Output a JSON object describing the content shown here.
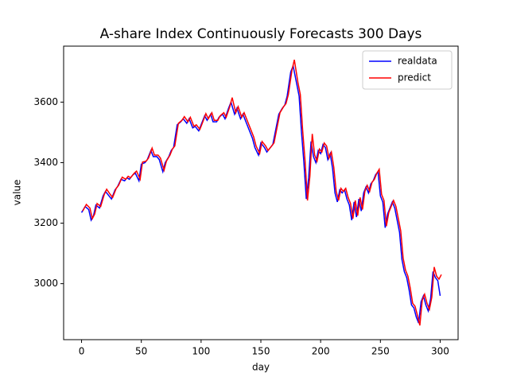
{
  "chart_data": {
    "type": "line",
    "title": "A-share Index Continuously Forecasts 300 Days",
    "xlabel": "day",
    "ylabel": "value",
    "x": [
      0,
      3,
      6,
      8,
      10,
      12,
      15,
      18,
      20,
      23,
      25,
      28,
      30,
      33,
      36,
      38,
      40,
      43,
      45,
      48,
      50,
      53,
      55,
      58,
      60,
      63,
      65,
      68,
      70,
      73,
      75,
      77,
      80,
      83,
      85,
      88,
      90,
      93,
      95,
      98,
      100,
      103,
      105,
      108,
      110,
      113,
      115,
      118,
      120,
      123,
      125,
      128,
      130,
      133,
      135,
      138,
      140,
      143,
      145,
      148,
      150,
      153,
      155,
      158,
      160,
      163,
      165,
      168,
      170,
      172,
      175,
      177,
      180,
      182,
      184,
      186,
      188,
      190,
      192,
      194,
      196,
      198,
      200,
      202,
      204,
      206,
      208,
      210,
      212,
      214,
      216,
      218,
      220,
      222,
      224,
      226,
      228,
      230,
      232,
      234,
      236,
      238,
      240,
      242,
      244,
      246,
      248,
      250,
      252,
      254,
      256,
      258,
      260,
      262,
      264,
      266,
      268,
      270,
      272,
      274,
      276,
      278,
      280,
      282,
      284,
      286,
      288,
      290,
      292,
      294,
      296,
      298,
      300
    ],
    "series": [
      {
        "name": "realdata",
        "color": "#0000ff",
        "values": [
          3235,
          3255,
          3245,
          3210,
          3225,
          3260,
          3250,
          3290,
          3305,
          3290,
          3280,
          3310,
          3320,
          3345,
          3340,
          3350,
          3345,
          3360,
          3365,
          3340,
          3395,
          3400,
          3410,
          3440,
          3420,
          3420,
          3410,
          3370,
          3400,
          3420,
          3440,
          3450,
          3525,
          3535,
          3545,
          3530,
          3545,
          3515,
          3520,
          3505,
          3525,
          3555,
          3540,
          3560,
          3535,
          3535,
          3550,
          3560,
          3545,
          3580,
          3600,
          3560,
          3580,
          3545,
          3560,
          3530,
          3510,
          3480,
          3450,
          3425,
          3465,
          3450,
          3435,
          3450,
          3460,
          3520,
          3560,
          3580,
          3590,
          3620,
          3700,
          3720,
          3660,
          3620,
          3500,
          3400,
          3280,
          3350,
          3470,
          3420,
          3400,
          3440,
          3430,
          3460,
          3450,
          3410,
          3430,
          3380,
          3300,
          3270,
          3310,
          3300,
          3310,
          3280,
          3260,
          3210,
          3270,
          3220,
          3280,
          3240,
          3300,
          3320,
          3300,
          3330,
          3340,
          3360,
          3370,
          3290,
          3270,
          3185,
          3230,
          3250,
          3270,
          3250,
          3210,
          3170,
          3080,
          3040,
          3020,
          2980,
          2930,
          2920,
          2890,
          2870,
          2940,
          2960,
          2930,
          2910,
          2950,
          3040,
          3020,
          3010,
          2960
        ]
      },
      {
        "name": "predict",
        "color": "#ff0000",
        "x": [
          1,
          4,
          7,
          9,
          11,
          13,
          16,
          19,
          21,
          24,
          26,
          29,
          31,
          34,
          37,
          39,
          41,
          44,
          46,
          49,
          51,
          54,
          56,
          59,
          61,
          64,
          66,
          69,
          71,
          74,
          76,
          78,
          81,
          84,
          86,
          89,
          91,
          94,
          96,
          99,
          101,
          104,
          106,
          109,
          111,
          114,
          116,
          119,
          121,
          124,
          126,
          129,
          131,
          134,
          136,
          139,
          141,
          144,
          146,
          149,
          151,
          154,
          156,
          159,
          161,
          164,
          166,
          169,
          171,
          173,
          176,
          178,
          181,
          183,
          185,
          187,
          189,
          191,
          193,
          195,
          197,
          199,
          201,
          203,
          205,
          207,
          209,
          211,
          213,
          215,
          217,
          219,
          221,
          223,
          225,
          227,
          229,
          231,
          233,
          235,
          237,
          239,
          241,
          243,
          245,
          247,
          249,
          251,
          253,
          255,
          257,
          259,
          261,
          263,
          265,
          267,
          269,
          271,
          273,
          275,
          277,
          279,
          281,
          283,
          285,
          287,
          289,
          291,
          293,
          295,
          297,
          299,
          301
        ],
        "values": [
          3240,
          3262,
          3250,
          3215,
          3230,
          3265,
          3255,
          3295,
          3312,
          3295,
          3285,
          3315,
          3325,
          3352,
          3345,
          3355,
          3350,
          3365,
          3372,
          3345,
          3402,
          3405,
          3415,
          3448,
          3425,
          3425,
          3415,
          3375,
          3405,
          3425,
          3445,
          3455,
          3530,
          3540,
          3552,
          3535,
          3550,
          3520,
          3525,
          3510,
          3530,
          3562,
          3545,
          3565,
          3540,
          3540,
          3555,
          3565,
          3550,
          3585,
          3615,
          3565,
          3585,
          3550,
          3565,
          3535,
          3515,
          3485,
          3455,
          3430,
          3470,
          3455,
          3440,
          3455,
          3465,
          3525,
          3565,
          3585,
          3595,
          3625,
          3705,
          3740,
          3665,
          3625,
          3505,
          3405,
          3275,
          3355,
          3495,
          3425,
          3405,
          3445,
          3435,
          3465,
          3455,
          3415,
          3435,
          3385,
          3305,
          3275,
          3315,
          3305,
          3315,
          3285,
          3265,
          3215,
          3275,
          3225,
          3285,
          3245,
          3305,
          3325,
          3305,
          3335,
          3345,
          3365,
          3378,
          3295,
          3275,
          3190,
          3235,
          3255,
          3275,
          3255,
          3215,
          3175,
          3085,
          3045,
          3025,
          2985,
          2935,
          2925,
          2895,
          2862,
          2945,
          2965,
          2935,
          2915,
          2955,
          3055,
          3025,
          3015,
          3030
        ]
      }
    ],
    "xlim": [
      -15,
      315
    ],
    "xticks": [
      0,
      50,
      100,
      150,
      200,
      250,
      300
    ],
    "ylim": [
      2815,
      3785
    ],
    "yticks": [
      3000,
      3200,
      3400,
      3600
    ],
    "legend": "upper right"
  }
}
